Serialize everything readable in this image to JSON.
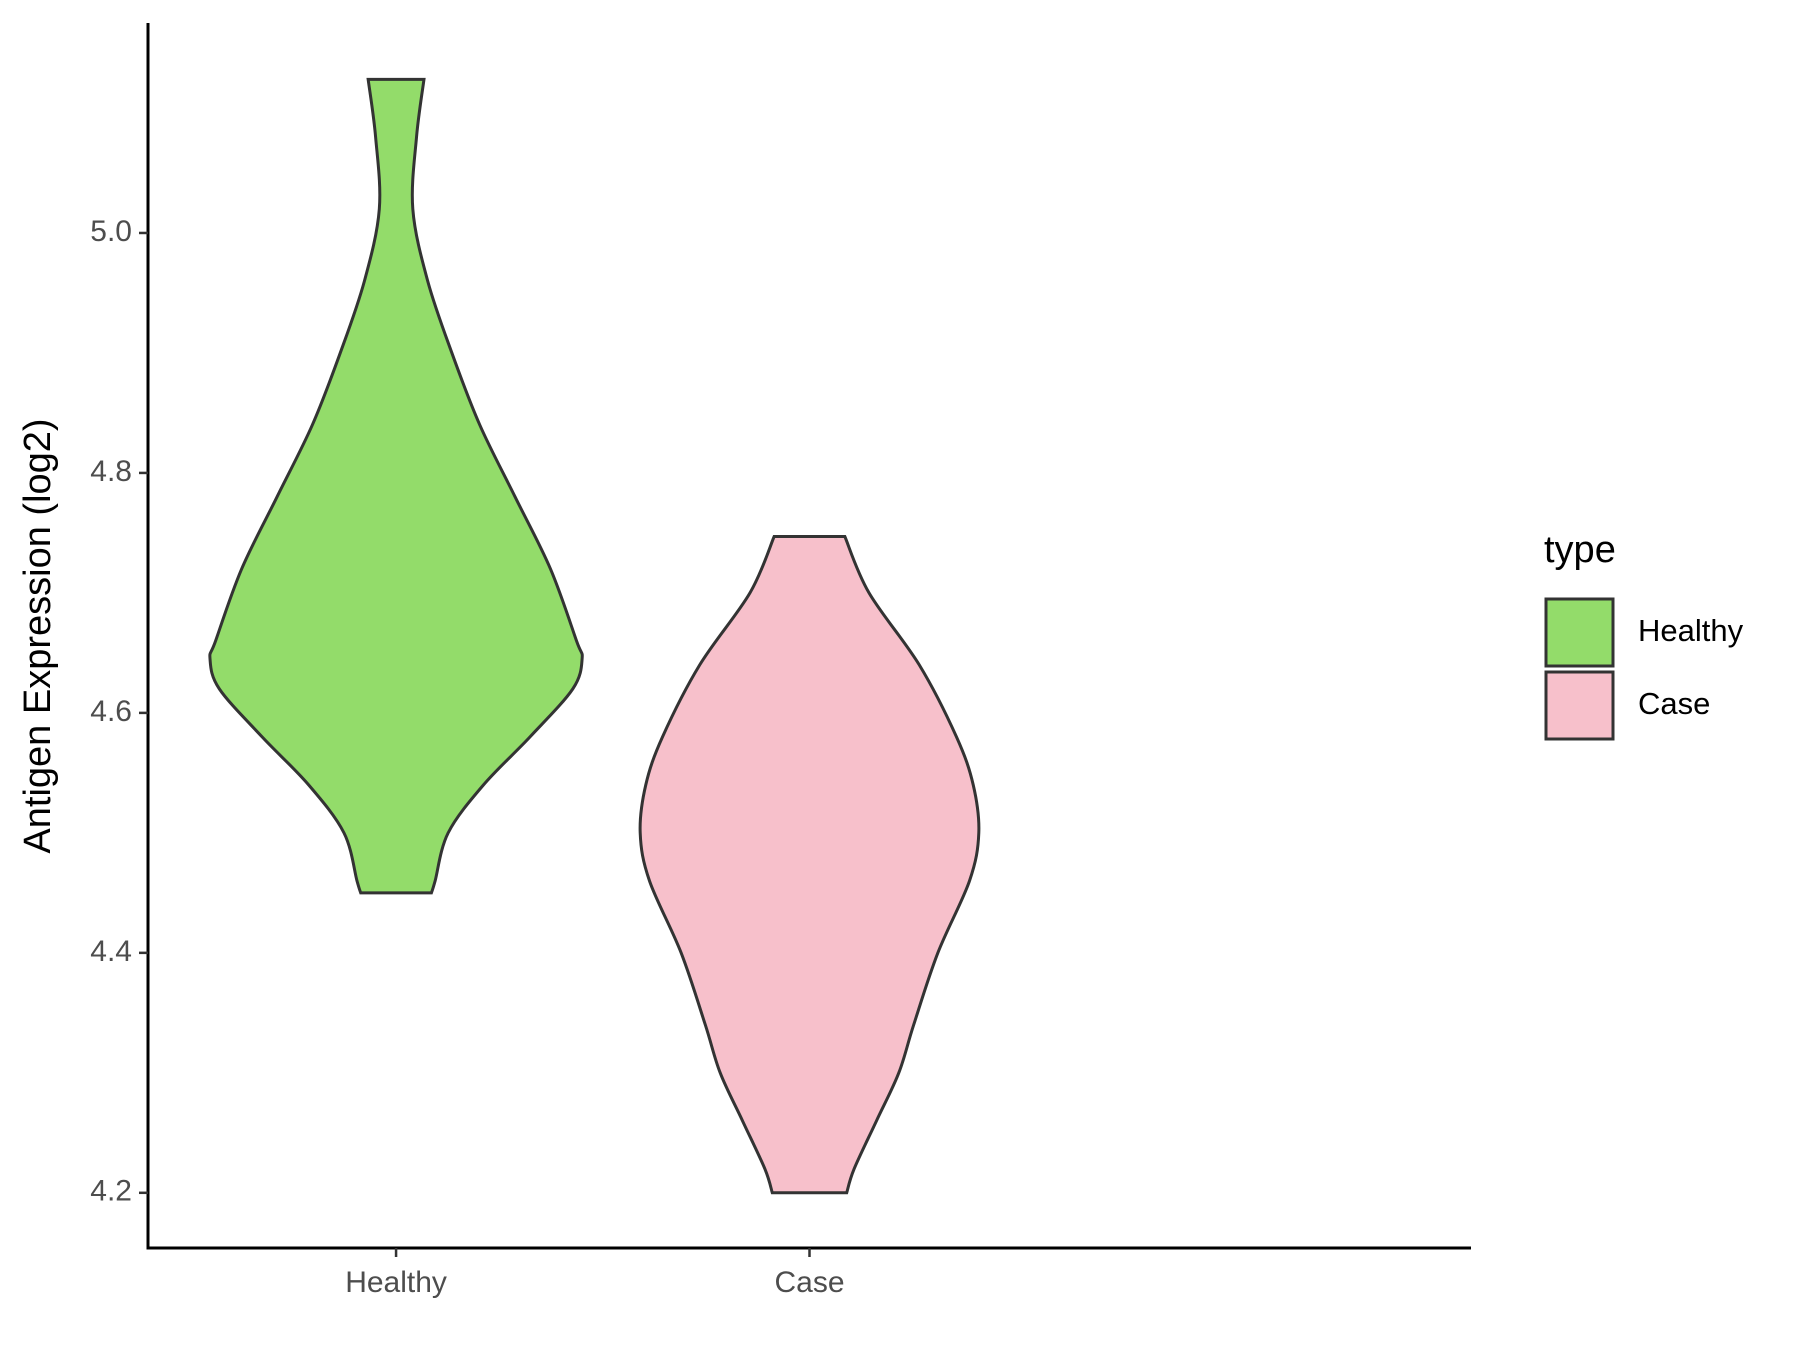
{
  "chart_data": {
    "type": "violin",
    "y_label": "Antigen Expression (log2)",
    "legend_title": "type",
    "legend_position": "right",
    "grid": false,
    "categories": [
      "Healthy",
      "Case"
    ],
    "ylim": [
      4.154,
      5.175
    ],
    "yticks": [
      4.2,
      4.4,
      4.6,
      4.8,
      {
        "value": 5,
        "label": "5.0"
      }
    ],
    "series": [
      {
        "name": "Healthy",
        "color": "#93dc6a",
        "y": [
          5.128,
          5.08,
          5.02,
          4.96,
          4.9,
          4.84,
          4.78,
          4.72,
          4.66,
          4.645,
          4.62,
          4.58,
          4.54,
          4.5,
          4.46,
          4.45
        ],
        "density": [
          0.15,
          0.11,
          0.09,
          0.17,
          0.3,
          0.45,
          0.64,
          0.83,
          0.97,
          1.0,
          0.95,
          0.72,
          0.47,
          0.28,
          0.21,
          0.19
        ]
      },
      {
        "name": "Case",
        "color": "#f7c0cb",
        "y": [
          4.747,
          4.7,
          4.64,
          4.58,
          4.54,
          4.5,
          4.46,
          4.4,
          4.34,
          4.3,
          4.26,
          4.22,
          4.2
        ],
        "density": [
          0.19,
          0.32,
          0.59,
          0.79,
          0.88,
          0.91,
          0.86,
          0.69,
          0.56,
          0.48,
          0.36,
          0.24,
          0.2
        ]
      }
    ]
  }
}
